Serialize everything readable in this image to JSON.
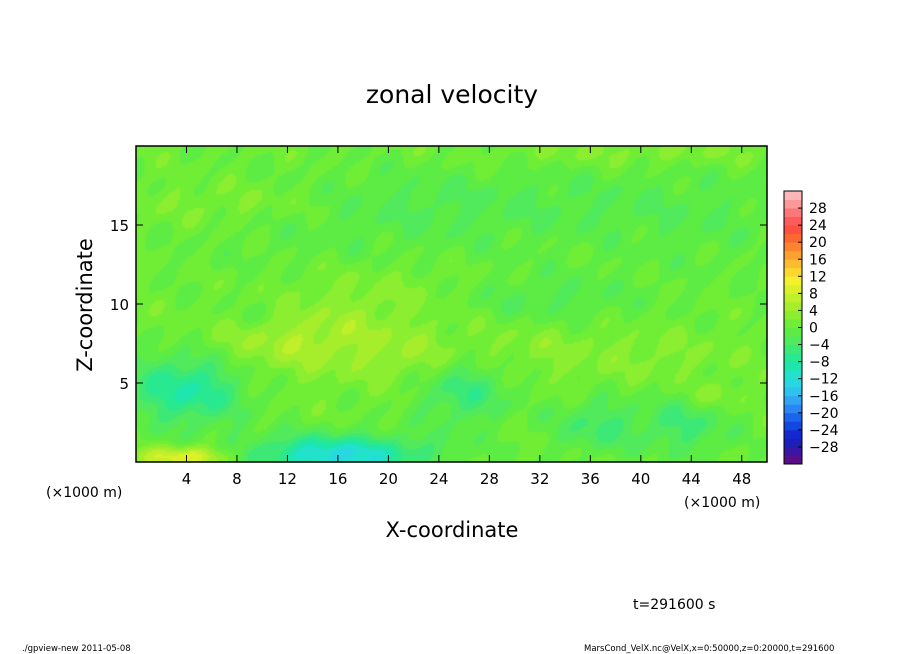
{
  "chart_data": {
    "type": "heatmap",
    "title": "zonal velocity",
    "xlabel": "X-coordinate",
    "ylabel": "Z-coordinate",
    "x_unit_left": "(×1000 m)",
    "x_unit_right": "(×1000 m)",
    "xlim": [
      0,
      50
    ],
    "ylim": [
      0,
      20
    ],
    "xticks": [
      "4",
      "8",
      "12",
      "16",
      "20",
      "24",
      "28",
      "32",
      "36",
      "40",
      "44",
      "48"
    ],
    "xtick_values": [
      4,
      8,
      12,
      16,
      20,
      24,
      28,
      32,
      36,
      40,
      44,
      48
    ],
    "yticks": [
      "5",
      "10",
      "15"
    ],
    "ytick_values": [
      5,
      10,
      15
    ],
    "colorbar": {
      "labels": [
        "28",
        "24",
        "20",
        "16",
        "12",
        "8",
        "4",
        "0",
        "−4",
        "−8",
        "−12",
        "−16",
        "−20",
        "−24",
        "−28"
      ],
      "levels": [
        -32,
        -30,
        -28,
        -26,
        -24,
        -22,
        -20,
        -18,
        -16,
        -14,
        -12,
        -10,
        -8,
        -6,
        -4,
        -2,
        0,
        2,
        4,
        6,
        8,
        10,
        12,
        14,
        16,
        18,
        20,
        22,
        24,
        26,
        28,
        30,
        32
      ],
      "colors": [
        "#5a0f8a",
        "#3a16a4",
        "#1e1eb8",
        "#1428d0",
        "#1446e0",
        "#1c64ec",
        "#2a86f4",
        "#30a6f2",
        "#2ec2ee",
        "#28d6e4",
        "#22e2cc",
        "#1ee6ac",
        "#28e890",
        "#3ce876",
        "#50ea5c",
        "#5cec44",
        "#70ee36",
        "#8cee30",
        "#a6ee2c",
        "#c0f02a",
        "#dcf02a",
        "#f4f02c",
        "#fcd82e",
        "#fcbc30",
        "#fca030",
        "#fc8430",
        "#fc6830",
        "#fc5040",
        "#fc5c5c",
        "#fc7878",
        "#fc9898",
        "#fcb8b8"
      ]
    },
    "time_label": "t=291600 s",
    "footer_left": "./gpview-new   2011-05-08",
    "footer_right": "MarsCond_VelX.nc@VelX,x=0:50000,z=0:20000,t=291600",
    "blobs": [
      {
        "x": 4,
        "y": 0.3,
        "sx": 2.5,
        "sy": 0.5,
        "a": 10
      },
      {
        "x": 16,
        "y": 0.4,
        "sx": 5,
        "sy": 0.9,
        "a": -13
      },
      {
        "x": 4,
        "y": 4.6,
        "sx": 3.2,
        "sy": 1.6,
        "a": -9
      },
      {
        "x": 26,
        "y": 4.5,
        "sx": 2.6,
        "sy": 1.5,
        "a": -6
      },
      {
        "x": 36.5,
        "y": 2.3,
        "sx": 2.4,
        "sy": 1.2,
        "a": -5
      },
      {
        "x": 43.5,
        "y": 2.3,
        "sx": 2.5,
        "sy": 1.3,
        "a": -5
      },
      {
        "x": 46,
        "y": 4.2,
        "sx": 1.5,
        "sy": 0.6,
        "a": 3
      },
      {
        "x": 13,
        "y": 7.8,
        "sx": 5,
        "sy": 1.6,
        "a": 5
      },
      {
        "x": 21,
        "y": 10.7,
        "sx": 6,
        "sy": 1.6,
        "a": 3
      },
      {
        "x": 31,
        "y": 10.2,
        "sx": 6,
        "sy": 1.2,
        "a": -3
      },
      {
        "x": 10,
        "y": 9.3,
        "sx": 3,
        "sy": 0.8,
        "a": -2.5
      },
      {
        "x": 8,
        "y": 16.4,
        "sx": 6,
        "sy": 1.0,
        "a": 2.5
      },
      {
        "x": 26,
        "y": 16.5,
        "sx": 14,
        "sy": 1.6,
        "a": -2.5
      },
      {
        "x": 20,
        "y": 13,
        "sx": 10,
        "sy": 2.5,
        "a": -1.5
      },
      {
        "x": 45,
        "y": 15,
        "sx": 6,
        "sy": 2.5,
        "a": -1.5
      },
      {
        "x": 40,
        "y": 19.6,
        "sx": 8,
        "sy": 0.6,
        "a": 2
      },
      {
        "x": 32,
        "y": 7.2,
        "sx": 5,
        "sy": 1.5,
        "a": 2
      },
      {
        "x": 22,
        "y": 6.5,
        "sx": 3,
        "sy": 1.2,
        "a": 2.5
      },
      {
        "x": 42,
        "y": 6.8,
        "sx": 4,
        "sy": 1.2,
        "a": 1.5
      }
    ]
  }
}
